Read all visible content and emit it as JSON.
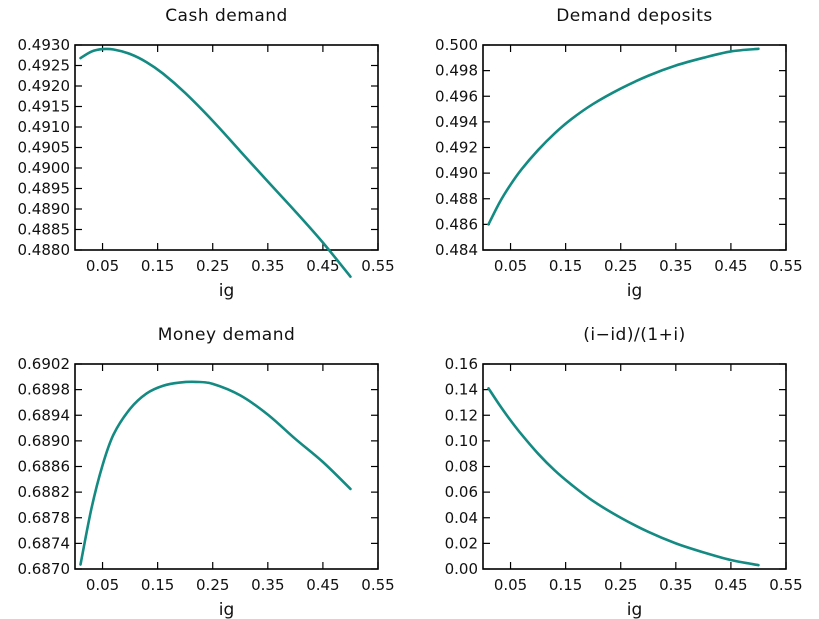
{
  "chart_data": [
    {
      "type": "line",
      "title": "Cash demand",
      "xlabel": "ig",
      "ylabel": "",
      "xlim": [
        0.0,
        0.55
      ],
      "ylim": [
        0.488,
        0.493
      ],
      "xticks": [
        0.05,
        0.15,
        0.25,
        0.35,
        0.45,
        0.55
      ],
      "xtick_labels": [
        "0.05",
        "0.15",
        "0.25",
        "0.35",
        "0.45",
        "0.55"
      ],
      "yticks": [
        0.488,
        0.4885,
        0.489,
        0.4895,
        0.49,
        0.4905,
        0.491,
        0.4915,
        0.492,
        0.4925,
        0.493
      ],
      "ytick_labels": [
        "0.4880",
        "0.4885",
        "0.4890",
        "0.4895",
        "0.4900",
        "0.4905",
        "0.4910",
        "0.4915",
        "0.4920",
        "0.4925",
        "0.4930"
      ],
      "series": [
        {
          "color": "#138a82",
          "x": [
            0.01,
            0.03,
            0.05,
            0.07,
            0.1,
            0.13,
            0.16,
            0.2,
            0.25,
            0.3,
            0.35,
            0.4,
            0.45,
            0.5
          ],
          "y": [
            0.49268,
            0.49284,
            0.4929,
            0.49289,
            0.49278,
            0.49258,
            0.4923,
            0.49183,
            0.49115,
            0.49041,
            0.48967,
            0.48894,
            0.48818,
            0.48735
          ]
        }
      ]
    },
    {
      "type": "line",
      "title": "Demand deposits",
      "xlabel": "ig",
      "ylabel": "",
      "xlim": [
        0.0,
        0.55
      ],
      "ylim": [
        0.484,
        0.5
      ],
      "xticks": [
        0.05,
        0.15,
        0.25,
        0.35,
        0.45,
        0.55
      ],
      "xtick_labels": [
        "0.05",
        "0.15",
        "0.25",
        "0.35",
        "0.45",
        "0.55"
      ],
      "yticks": [
        0.484,
        0.486,
        0.488,
        0.49,
        0.492,
        0.494,
        0.496,
        0.498,
        0.5
      ],
      "ytick_labels": [
        "0.484",
        "0.486",
        "0.488",
        "0.490",
        "0.492",
        "0.494",
        "0.496",
        "0.498",
        "0.500"
      ],
      "series": [
        {
          "color": "#138a82",
          "x": [
            0.01,
            0.03,
            0.05,
            0.07,
            0.1,
            0.13,
            0.16,
            0.2,
            0.25,
            0.3,
            0.35,
            0.4,
            0.45,
            0.5
          ],
          "y": [
            0.486,
            0.4877,
            0.4891,
            0.4903,
            0.4918,
            0.4931,
            0.4942,
            0.4954,
            0.4966,
            0.4976,
            0.4984,
            0.499,
            0.4995,
            0.4997
          ]
        }
      ]
    },
    {
      "type": "line",
      "title": "Money demand",
      "xlabel": "ig",
      "ylabel": "",
      "xlim": [
        0.0,
        0.55
      ],
      "ylim": [
        0.687,
        0.6902
      ],
      "xticks": [
        0.05,
        0.15,
        0.25,
        0.35,
        0.45,
        0.55
      ],
      "xtick_labels": [
        "0.05",
        "0.15",
        "0.25",
        "0.35",
        "0.45",
        "0.55"
      ],
      "yticks": [
        0.687,
        0.6874,
        0.6878,
        0.6882,
        0.6886,
        0.689,
        0.6894,
        0.6898,
        0.6902
      ],
      "ytick_labels": [
        "0.6870",
        "0.6874",
        "0.6878",
        "0.6882",
        "0.6886",
        "0.6890",
        "0.6894",
        "0.6898",
        "0.6902"
      ],
      "series": [
        {
          "color": "#138a82",
          "x": [
            0.01,
            0.03,
            0.05,
            0.07,
            0.1,
            0.13,
            0.16,
            0.19,
            0.22,
            0.25,
            0.3,
            0.35,
            0.4,
            0.45,
            0.5
          ],
          "y": [
            0.68707,
            0.68795,
            0.68862,
            0.6891,
            0.6895,
            0.68974,
            0.68986,
            0.68991,
            0.68992,
            0.68989,
            0.68971,
            0.68941,
            0.68903,
            0.68867,
            0.68825
          ]
        }
      ]
    },
    {
      "type": "line",
      "title": "(i−id)/(1+i)",
      "xlabel": "ig",
      "ylabel": "",
      "xlim": [
        0.0,
        0.55
      ],
      "ylim": [
        0.0,
        0.16
      ],
      "xticks": [
        0.05,
        0.15,
        0.25,
        0.35,
        0.45,
        0.55
      ],
      "xtick_labels": [
        "0.05",
        "0.15",
        "0.25",
        "0.35",
        "0.45",
        "0.55"
      ],
      "yticks": [
        0.0,
        0.02,
        0.04,
        0.06,
        0.08,
        0.1,
        0.12,
        0.14,
        0.16
      ],
      "ytick_labels": [
        "0.00",
        "0.02",
        "0.04",
        "0.06",
        "0.08",
        "0.10",
        "0.12",
        "0.14",
        "0.16"
      ],
      "series": [
        {
          "color": "#138a82",
          "x": [
            0.01,
            0.03,
            0.05,
            0.07,
            0.1,
            0.13,
            0.16,
            0.2,
            0.25,
            0.3,
            0.35,
            0.4,
            0.45,
            0.5
          ],
          "y": [
            0.141,
            0.128,
            0.116,
            0.105,
            0.09,
            0.077,
            0.066,
            0.053,
            0.04,
            0.029,
            0.02,
            0.013,
            0.007,
            0.003
          ]
        }
      ]
    }
  ]
}
